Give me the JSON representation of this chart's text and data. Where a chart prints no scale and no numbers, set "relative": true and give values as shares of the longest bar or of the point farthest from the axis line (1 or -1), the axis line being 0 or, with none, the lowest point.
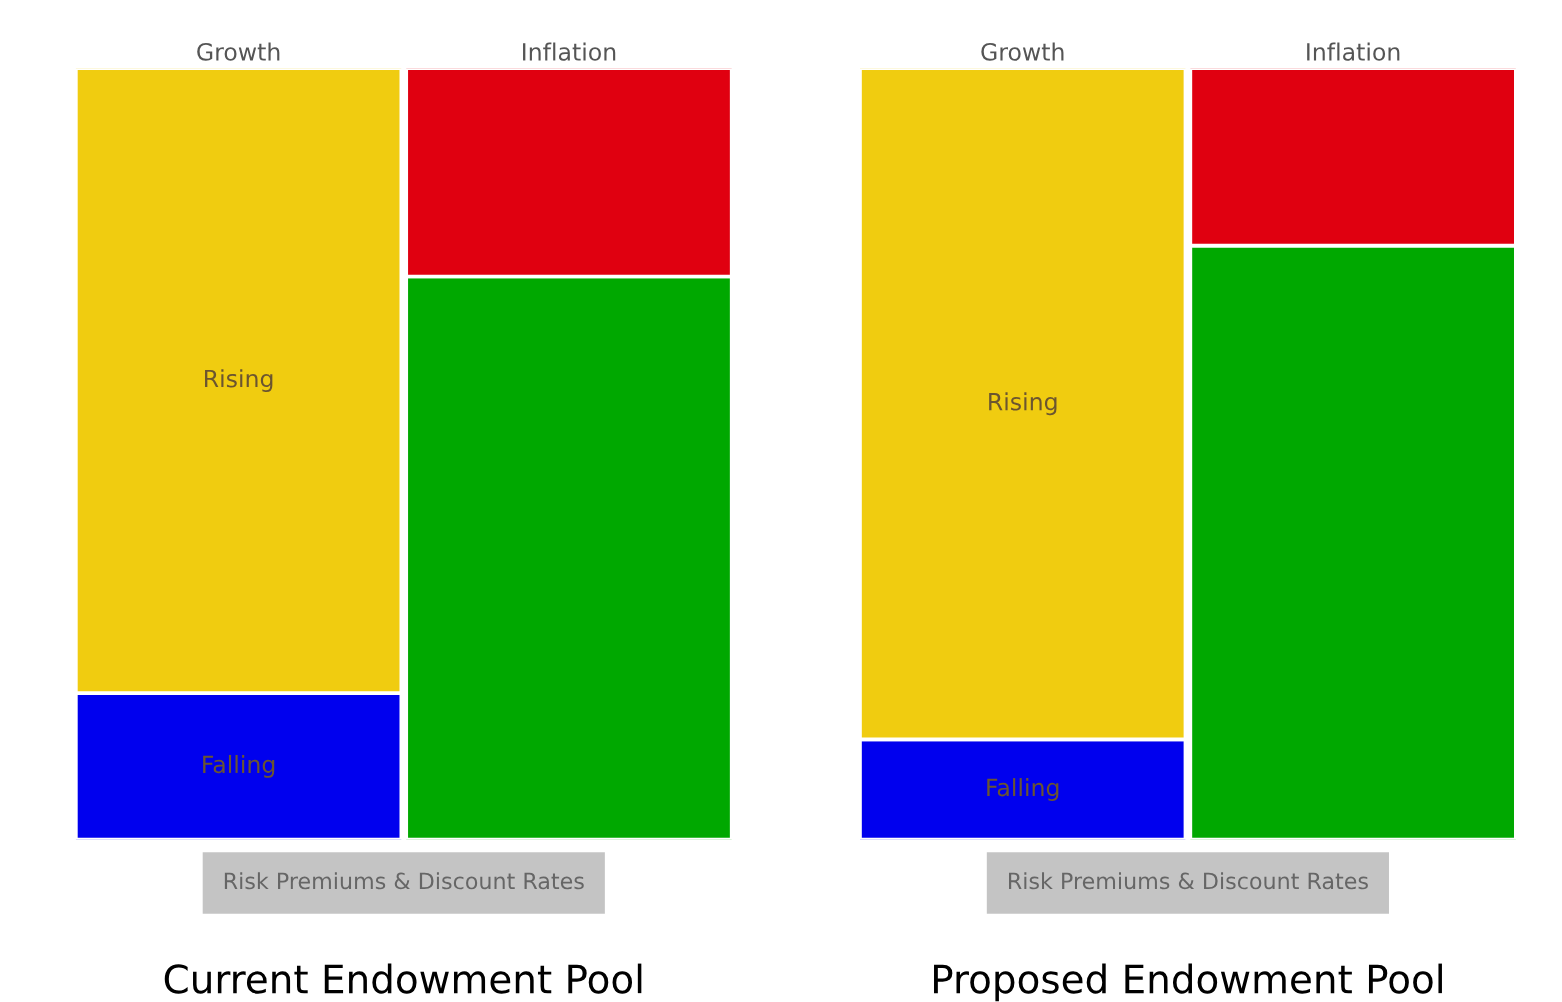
{
  "chart_data": [
    {
      "type": "bar",
      "stacked": true,
      "relative": true,
      "title": "Current Endowment Pool",
      "categories": [
        "Growth",
        "Inflation"
      ],
      "annotations": [
        "Risk Premiums & Discount Rates"
      ],
      "series": [
        {
          "name": "Falling",
          "colors": [
            "#0000ee",
            "#00a800"
          ],
          "values": [
            0.19,
            0.73
          ]
        },
        {
          "name": "Rising",
          "colors": [
            "#f0cc10",
            "#e00010"
          ],
          "values": [
            0.81,
            0.27
          ]
        }
      ]
    },
    {
      "type": "bar",
      "stacked": true,
      "relative": true,
      "title": "Proposed Endowment Pool",
      "categories": [
        "Growth",
        "Inflation"
      ],
      "annotations": [
        "Risk Premiums & Discount Rates"
      ],
      "series": [
        {
          "name": "Falling",
          "colors": [
            "#0000ee",
            "#00a800"
          ],
          "values": [
            0.13,
            0.77
          ]
        },
        {
          "name": "Rising",
          "colors": [
            "#f0cc10",
            "#e00010"
          ],
          "values": [
            0.87,
            0.23
          ]
        }
      ]
    }
  ]
}
